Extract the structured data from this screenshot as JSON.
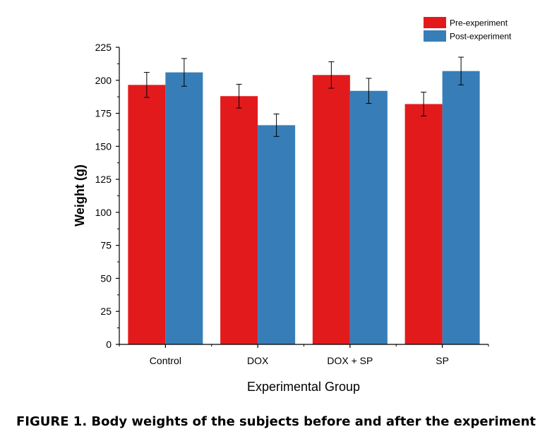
{
  "chart_data": {
    "type": "bar",
    "title": "",
    "xlabel": "Experimental Group",
    "ylabel": "Weight (g)",
    "categories": [
      "Control",
      "DOX",
      "DOX + SP",
      "SP"
    ],
    "series": [
      {
        "name": "Pre-experiment",
        "color": "#e31a1c",
        "values": [
          196.5,
          188,
          204,
          182
        ],
        "errors": [
          9.5,
          9,
          10,
          9
        ]
      },
      {
        "name": "Post-experiment",
        "color": "#377eb8",
        "values": [
          206,
          166,
          192,
          207
        ],
        "errors": [
          10.5,
          8.5,
          9.5,
          10.5
        ]
      }
    ],
    "ylim": [
      0,
      225
    ],
    "yticks": [
      0,
      25,
      50,
      75,
      100,
      125,
      150,
      175,
      200,
      225
    ],
    "grid": false,
    "legend_position": "top-right"
  },
  "caption": "FIGURE 1. Body weights of the subjects before and after the experiment"
}
